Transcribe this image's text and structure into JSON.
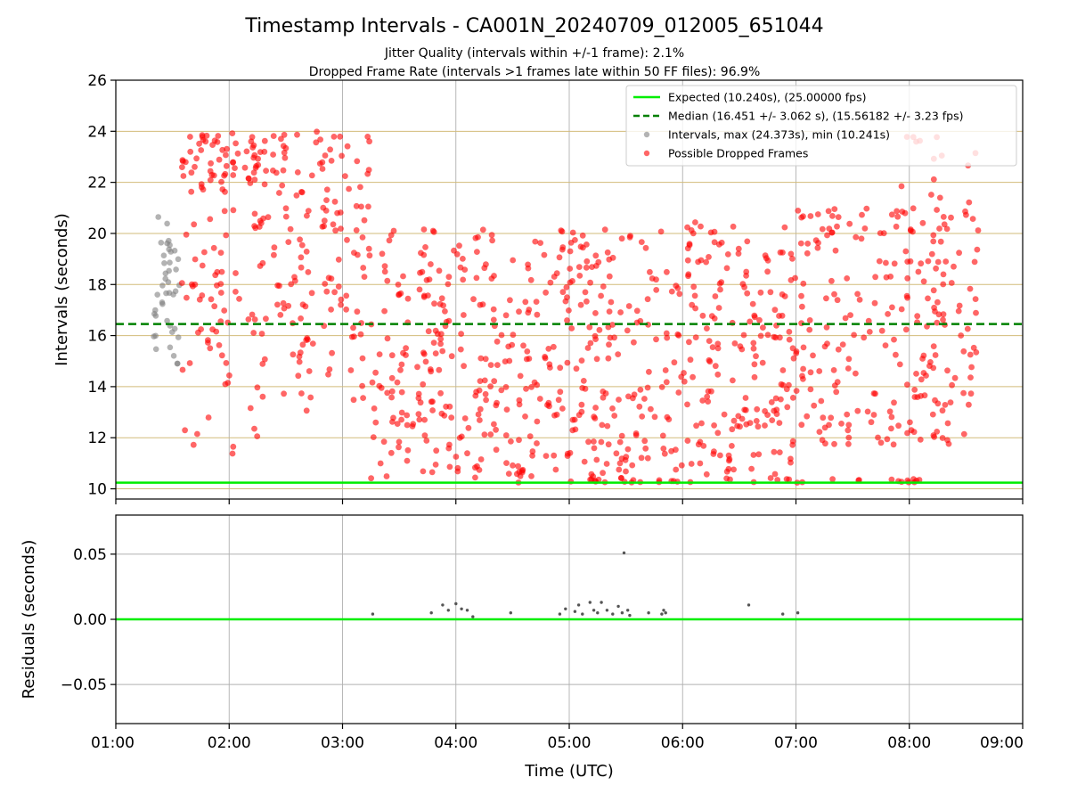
{
  "chart_data": {
    "type": "scatter",
    "title": "Timestamp Intervals - CA001N_20240709_012005_651044",
    "subtitle_lines": [
      "Jitter Quality (intervals within +/-1 frame): 2.1%",
      "Dropped Frame Rate (intervals >1 frames late within 50 FF files): 96.9%"
    ],
    "xlabel": "Time (UTC)",
    "xlim": [
      "01:00",
      "09:00"
    ],
    "x_ticks": [
      "01:00",
      "02:00",
      "03:00",
      "04:00",
      "05:00",
      "06:00",
      "07:00",
      "08:00",
      "09:00"
    ],
    "panels": [
      {
        "id": "intervals",
        "ylabel": "Intervals (seconds)",
        "ylim": [
          9.6,
          26
        ],
        "y_ticks": [
          "10",
          "12",
          "14",
          "16",
          "18",
          "20",
          "22",
          "24",
          "26"
        ],
        "grid": true,
        "reference_lines": [
          {
            "name": "Expected (10.240s), (25.00000 fps)",
            "y": 10.24,
            "style": "solid",
            "color": "#00ee00"
          },
          {
            "name": "Median (16.451 +/- 3.062 s), (15.56182 +/- 3.23 fps)",
            "y": 16.451,
            "style": "dashed",
            "color": "#008000"
          }
        ],
        "series": [
          {
            "name": "Intervals, max (24.373s), min (10.241s)",
            "color": "#808080",
            "x_range": [
              "01:20",
              "01:35"
            ],
            "y_range": [
              14.9,
              20.9
            ]
          },
          {
            "name": "Possible Dropped Frames",
            "color": "#ff0000",
            "x_range": [
              "01:35",
              "08:37"
            ],
            "y_range": [
              10.24,
              24.0
            ]
          }
        ],
        "legend": "top-right"
      },
      {
        "id": "residuals",
        "ylabel": "Residuals (seconds)",
        "ylim": [
          -0.08,
          0.08
        ],
        "y_ticks": [
          "−0.05",
          "0.00",
          "0.05"
        ],
        "grid": true,
        "reference_lines": [
          {
            "name": "",
            "y": 0.0,
            "style": "solid",
            "color": "#00ee00"
          }
        ],
        "series": [
          {
            "name": "",
            "color": "#555555",
            "x": [
              "03:16",
              "03:47",
              "03:53",
              "03:56",
              "04:00",
              "04:03",
              "04:06",
              "04:09",
              "04:29",
              "04:55",
              "04:58",
              "05:03",
              "05:05",
              "05:07",
              "05:11",
              "05:13",
              "05:15",
              "05:17",
              "05:20",
              "05:23",
              "05:26",
              "05:28",
              "05:29",
              "05:31",
              "05:32",
              "05:42",
              "05:49",
              "05:50",
              "05:51",
              "06:35",
              "06:53",
              "07:01"
            ],
            "y": [
              0.004,
              0.005,
              0.011,
              0.007,
              0.012,
              0.008,
              0.007,
              0.002,
              0.005,
              0.004,
              0.008,
              0.006,
              0.011,
              0.004,
              0.013,
              0.007,
              0.005,
              0.013,
              0.007,
              0.004,
              0.01,
              0.005,
              0.051,
              0.007,
              0.003,
              0.005,
              0.004,
              0.007,
              0.005,
              0.011,
              0.004,
              0.005
            ]
          }
        ]
      }
    ]
  }
}
